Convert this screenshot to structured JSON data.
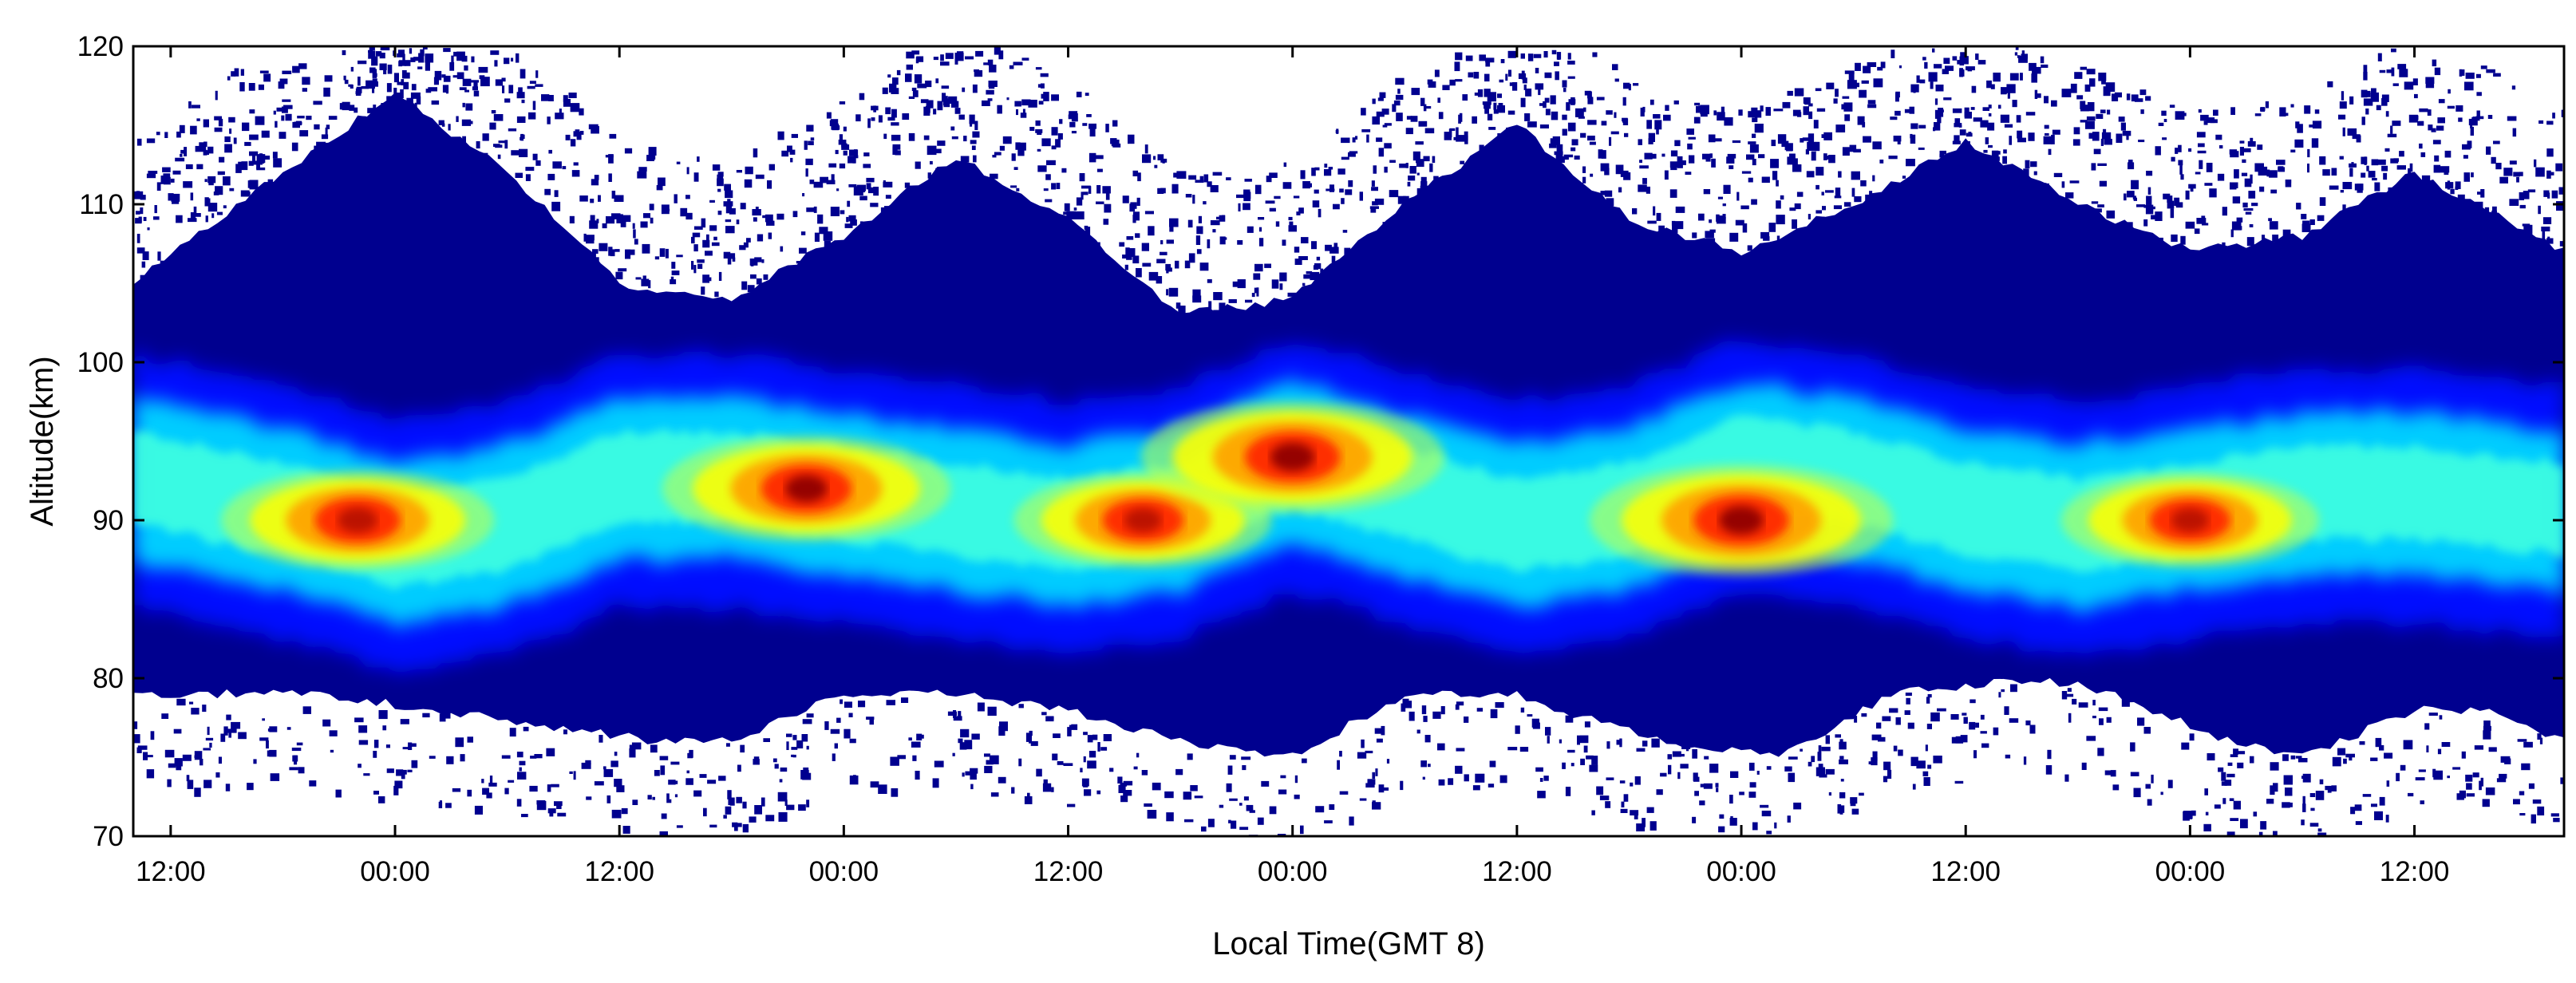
{
  "chart_data": {
    "type": "heatmap",
    "title": "",
    "xlabel": "Local Time(GMT 8)",
    "ylabel": "Altitude(km)",
    "ylim": [
      70,
      120
    ],
    "y_ticks": [
      "70",
      "80",
      "90",
      "100",
      "110",
      "120"
    ],
    "x_ticks": [
      "12:00",
      "00:00",
      "12:00",
      "00:00",
      "12:00",
      "00:00",
      "12:00",
      "00:00",
      "12:00",
      "00:00",
      "12:00"
    ],
    "grid": "dotted horizontal lines at 80 and 120",
    "colormap": "jet",
    "colormap_stops": [
      "#00008f",
      "#0000ff",
      "#00b0ff",
      "#00ffff",
      "#80ff80",
      "#ffff00",
      "#ff8000",
      "#ff0000",
      "#800000"
    ],
    "x_range_hours": [
      -2,
      128
    ],
    "layer": {
      "lower_edge_km": [
        [
          -2,
          79
        ],
        [
          8,
          79
        ],
        [
          14,
          78
        ],
        [
          20,
          77
        ],
        [
          26,
          76
        ],
        [
          30,
          76
        ],
        [
          36,
          79
        ],
        [
          42,
          79
        ],
        [
          48,
          78
        ],
        [
          54,
          76
        ],
        [
          60,
          75
        ],
        [
          66,
          79
        ],
        [
          72,
          79
        ],
        [
          74,
          78
        ],
        [
          80,
          76
        ],
        [
          86,
          75
        ],
        [
          92,
          79
        ],
        [
          100,
          80
        ],
        [
          104,
          79
        ],
        [
          110,
          76
        ],
        [
          114,
          75
        ],
        [
          120,
          78
        ],
        [
          124,
          78
        ],
        [
          128,
          76
        ]
      ],
      "upper_edge_km": [
        [
          -2,
          105
        ],
        [
          6,
          112
        ],
        [
          12,
          117
        ],
        [
          18,
          112
        ],
        [
          24,
          105
        ],
        [
          30,
          104
        ],
        [
          36,
          108
        ],
        [
          42,
          113
        ],
        [
          48,
          109
        ],
        [
          54,
          103
        ],
        [
          60,
          104
        ],
        [
          66,
          110
        ],
        [
          72,
          115
        ],
        [
          78,
          109
        ],
        [
          84,
          107
        ],
        [
          90,
          110
        ],
        [
          96,
          114
        ],
        [
          102,
          110
        ],
        [
          108,
          107
        ],
        [
          114,
          108
        ],
        [
          120,
          112
        ],
        [
          128,
          107
        ]
      ],
      "peak_altitude_km": [
        [
          -2,
          93
        ],
        [
          6,
          91
        ],
        [
          12,
          89
        ],
        [
          18,
          90
        ],
        [
          24,
          93
        ],
        [
          30,
          93
        ],
        [
          36,
          92
        ],
        [
          42,
          91
        ],
        [
          48,
          90
        ],
        [
          54,
          91
        ],
        [
          60,
          94
        ],
        [
          66,
          92
        ],
        [
          72,
          90
        ],
        [
          78,
          91
        ],
        [
          84,
          94
        ],
        [
          90,
          93
        ],
        [
          96,
          91
        ],
        [
          102,
          90
        ],
        [
          108,
          91
        ],
        [
          114,
          92
        ],
        [
          120,
          92
        ],
        [
          128,
          91
        ]
      ]
    },
    "density_maxima": [
      {
        "time_h": 10,
        "altitude_km": 90,
        "level": 0.9
      },
      {
        "time_h": 34,
        "altitude_km": 92,
        "level": 0.95
      },
      {
        "time_h": 52,
        "altitude_km": 90,
        "level": 0.85
      },
      {
        "time_h": 60,
        "altitude_km": 94,
        "level": 1.0
      },
      {
        "time_h": 84,
        "altitude_km": 90,
        "level": 1.0
      },
      {
        "time_h": 108,
        "altitude_km": 90,
        "level": 0.85
      }
    ]
  }
}
